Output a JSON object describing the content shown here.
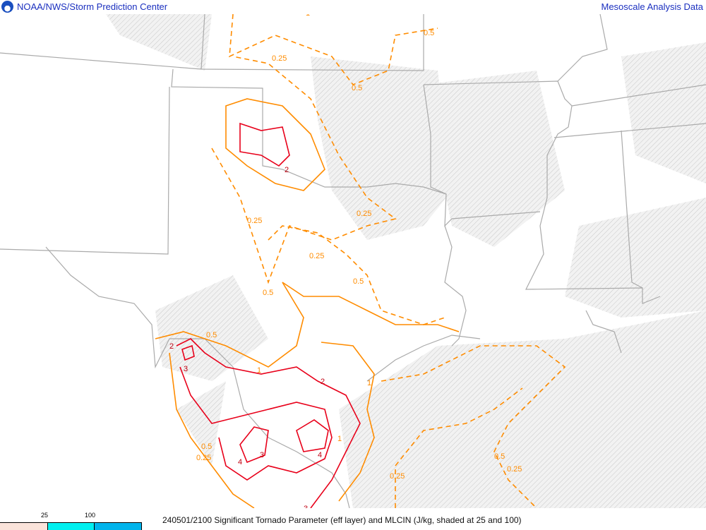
{
  "header": {
    "left_title": "NOAA/NWS/Storm Prediction Center",
    "right_title": "Mesoscale Analysis Data",
    "logo": "noaa-logo"
  },
  "legend": {
    "ticks": [
      "25",
      "100"
    ],
    "colors": [
      "#fae3da",
      "#00f0f0",
      "#00b4ec"
    ]
  },
  "caption": "240501/2100 Significant Tornado Parameter (eff layer) and MLCIN (J/kg, shaded at 25 and 100)",
  "colors": {
    "border": "#aaaaaa",
    "stp_low": "#ff8c00",
    "stp_high": "#e8001a",
    "shade": "#e8e8e8"
  },
  "contour_labels": [
    "1",
    "0.5",
    "0.25",
    "0.5",
    "2",
    "0.25",
    "0.25",
    "0.25",
    "0.5",
    "0.5",
    "0.5",
    "2",
    "3",
    "1",
    "2",
    "1",
    "1",
    "4",
    "4",
    "3",
    "0.5",
    "0.25",
    "0.25",
    "0.5",
    "0.25",
    "3"
  ]
}
